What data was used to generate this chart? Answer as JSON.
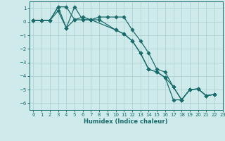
{
  "xlabel": "Humidex (Indice chaleur)",
  "xlim": [
    -0.5,
    23
  ],
  "ylim": [
    -6.5,
    1.5
  ],
  "xticks": [
    0,
    1,
    2,
    3,
    4,
    5,
    6,
    7,
    8,
    9,
    10,
    11,
    12,
    13,
    14,
    15,
    16,
    17,
    18,
    19,
    20,
    21,
    22,
    23
  ],
  "yticks": [
    1,
    0,
    -1,
    -2,
    -3,
    -4,
    -5,
    -6
  ],
  "bg_color": "#ceeaea",
  "grid_color": "#aacece",
  "line_color": "#1a6b6b",
  "line1_x": [
    0,
    1,
    2,
    3,
    4,
    5,
    6,
    7,
    8,
    9,
    10,
    11,
    12,
    13,
    14,
    15,
    16,
    17,
    18,
    19,
    20,
    21,
    22
  ],
  "line1_y": [
    0.1,
    0.1,
    0.1,
    1.1,
    1.1,
    0.15,
    0.35,
    0.15,
    0.35,
    0.35,
    0.35,
    0.35,
    -0.6,
    -1.4,
    -2.3,
    -3.5,
    -3.7,
    -4.8,
    -5.75,
    -5.0,
    -4.95,
    -5.45,
    -5.35
  ],
  "line2_x": [
    0,
    1,
    2,
    3,
    4,
    5,
    6,
    7,
    8,
    10,
    11,
    12,
    13,
    14,
    15,
    16,
    17,
    18,
    19,
    20,
    21,
    22
  ],
  "line2_y": [
    0.1,
    0.1,
    0.1,
    0.8,
    -0.45,
    1.1,
    0.15,
    0.15,
    0.15,
    -0.6,
    -0.9,
    -1.4,
    -2.3,
    -3.5,
    -3.7,
    -4.1,
    -4.8,
    -5.75,
    -5.0,
    -4.95,
    -5.45,
    -5.35
  ],
  "line3_x": [
    0,
    1,
    2,
    3,
    4,
    5,
    6,
    7,
    10,
    11,
    12,
    13,
    14,
    15,
    16,
    17,
    18,
    19,
    20,
    21,
    22
  ],
  "line3_y": [
    0.1,
    0.1,
    0.1,
    1.1,
    -0.45,
    0.15,
    0.15,
    0.15,
    -0.6,
    -0.9,
    -1.4,
    -2.3,
    -3.5,
    -3.7,
    -4.1,
    -5.75,
    -5.75,
    -5.0,
    -4.95,
    -5.45,
    -5.35
  ]
}
